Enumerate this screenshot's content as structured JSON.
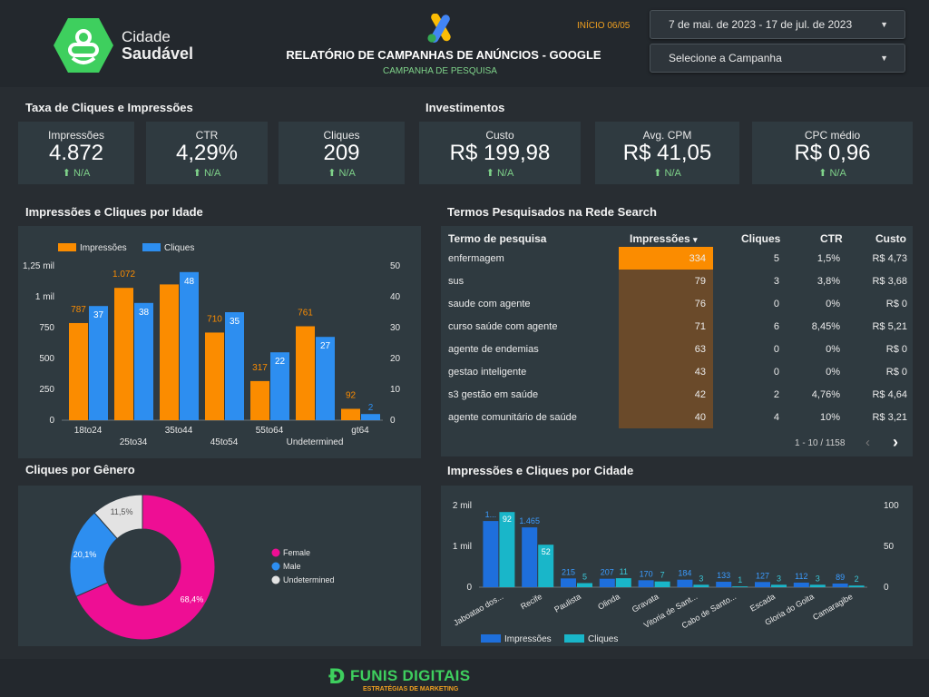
{
  "header": {
    "logo": {
      "line1": "Cidade",
      "line2": "Saudável"
    },
    "title": "RELATÓRIO DE CAMPANHAS DE ANÚNCIOS - GOOGLE",
    "subtitle": "CAMPANHA DE PESQUISA",
    "start_label": "INÍCIO 06/05",
    "date_range": "7 de mai. de 2023 - 17 de jul. de 2023",
    "campaign_select": "Selecione a Campanha",
    "colors": {
      "accent": "#f0a020",
      "subtitle": "#7fd38a",
      "logo_green": "#3ecf5e"
    }
  },
  "sections": {
    "taxa": "Taxa de Cliques e Impressões",
    "investimentos": "Investimentos",
    "idade": "Impressões e Cliques por Idade",
    "termos": "Termos Pesquisados na Rede Search",
    "genero": "Cliques por Gênero",
    "cidade": "Impressões e Cliques por Cidade"
  },
  "kpis": [
    {
      "label": "Impressões",
      "value": "4.872",
      "delta": "N/A"
    },
    {
      "label": "CTR",
      "value": "4,29%",
      "delta": "N/A"
    },
    {
      "label": "Cliques",
      "value": "209",
      "delta": "N/A"
    },
    {
      "label": "Custo",
      "value": "R$ 199,98",
      "delta": "N/A"
    },
    {
      "label": "Avg. CPM",
      "value": "R$ 41,05",
      "delta": "N/A"
    },
    {
      "label": "CPC médio",
      "value": "R$ 0,96",
      "delta": "N/A"
    }
  ],
  "terms_table": {
    "headers": [
      "Termo de pesquisa",
      "Impressões",
      "Cliques",
      "CTR",
      "Custo"
    ],
    "sort_indicator": "▾",
    "rows": [
      {
        "term": "enfermagem",
        "impressions": 334,
        "clicks": "5",
        "ctr": "1,5%",
        "cost": "R$ 4,73"
      },
      {
        "term": "sus",
        "impressions": 79,
        "clicks": "3",
        "ctr": "3,8%",
        "cost": "R$ 3,68"
      },
      {
        "term": "saude com agente",
        "impressions": 76,
        "clicks": "0",
        "ctr": "0%",
        "cost": "R$ 0"
      },
      {
        "term": "curso saúde com agente",
        "impressions": 71,
        "clicks": "6",
        "ctr": "8,45%",
        "cost": "R$ 5,21"
      },
      {
        "term": "agente de endemias",
        "impressions": 63,
        "clicks": "0",
        "ctr": "0%",
        "cost": "R$ 0"
      },
      {
        "term": "gestao inteligente",
        "impressions": 43,
        "clicks": "0",
        "ctr": "0%",
        "cost": "R$ 0"
      },
      {
        "term": "s3 gestão em saúde",
        "impressions": 42,
        "clicks": "2",
        "ctr": "4,76%",
        "cost": "R$ 4,64"
      },
      {
        "term": "agente comunitário de saúde",
        "impressions": 40,
        "clicks": "4",
        "ctr": "10%",
        "cost": "R$ 3,21"
      }
    ],
    "pagination": "1 - 10 / 1158"
  },
  "footer": {
    "brand": "FUNIS DIGITAIS",
    "tagline": "ESTRATÉGIAS DE MARKETING"
  },
  "chart_data": [
    {
      "id": "idade",
      "type": "bar",
      "categories": [
        "18to24",
        "25to34",
        "35to44",
        "45to54",
        "55to64",
        "Undetermined",
        "gt64"
      ],
      "series": [
        {
          "name": "Impressões",
          "values": [
            787,
            1072,
            1100,
            710,
            317,
            761,
            92
          ],
          "color": "#fb8c00",
          "axis": "left"
        },
        {
          "name": "Cliques",
          "values": [
            37,
            38,
            48,
            35,
            22,
            27,
            2
          ],
          "color": "#2d8ef0",
          "axis": "right"
        }
      ],
      "point_labels": {
        "Impressões": [
          "787",
          "1.072",
          "",
          "710",
          "317",
          "761",
          "92"
        ],
        "Cliques": [
          "37",
          "38",
          "48",
          "35",
          "22",
          "27",
          "2"
        ]
      },
      "y_left": {
        "min": 0,
        "max": 1250,
        "ticks": [
          "0",
          "250",
          "500",
          "750",
          "1 mil",
          "1,25 mil"
        ]
      },
      "y_right": {
        "min": 0,
        "max": 50,
        "ticks": [
          "0",
          "10",
          "20",
          "30",
          "40",
          "50"
        ]
      },
      "legend_position": "top-left"
    },
    {
      "id": "genero",
      "type": "pie",
      "labels": [
        "Female",
        "Male",
        "Undetermined"
      ],
      "values": [
        68.4,
        20.1,
        11.5
      ],
      "value_labels": [
        "68,4%",
        "20,1%",
        "11,5%"
      ],
      "colors": [
        "#ee0e94",
        "#2d8ef0",
        "#e3e3e3"
      ],
      "legend_position": "right"
    },
    {
      "id": "cidade",
      "type": "bar",
      "categories": [
        "Jaboatao dos...",
        "Recife",
        "Paulista",
        "Olinda",
        "Gravata",
        "Vitoria de Sant...",
        "Cabo de Santo...",
        "Escada",
        "Gloria do Goita",
        "Camaragibe"
      ],
      "series": [
        {
          "name": "Impressões",
          "values": [
            1620,
            1465,
            215,
            207,
            170,
            184,
            133,
            127,
            112,
            89
          ],
          "color": "#1e6fdc",
          "axis": "left"
        },
        {
          "name": "Cliques",
          "values": [
            92,
            52,
            5,
            11,
            7,
            3,
            1,
            3,
            3,
            2
          ],
          "color": "#19b6c9",
          "axis": "right"
        }
      ],
      "point_labels": {
        "Impressões": [
          "1...",
          "1.465",
          "215",
          "207",
          "170",
          "184",
          "133",
          "127",
          "112",
          "89"
        ],
        "Cliques": [
          "92",
          "52",
          "5",
          "11",
          "7",
          "3",
          "1",
          "3",
          "3",
          "2"
        ]
      },
      "y_left": {
        "min": 0,
        "max": 2000,
        "ticks": [
          "0",
          "1 mil",
          "2 mil"
        ]
      },
      "y_right": {
        "min": 0,
        "max": 100,
        "ticks": [
          "0",
          "50",
          "100"
        ]
      },
      "legend_position": "bottom-left"
    }
  ]
}
